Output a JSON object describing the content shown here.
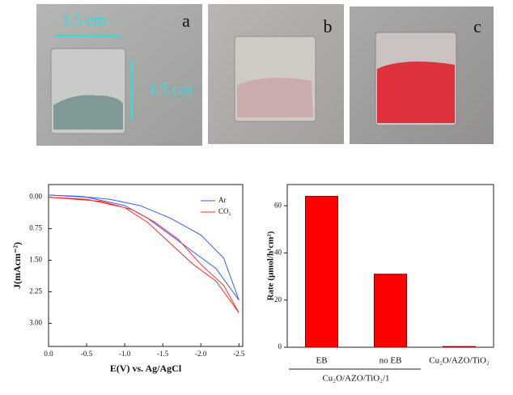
{
  "photos": {
    "labels": [
      "a",
      "b",
      "c"
    ],
    "scale_labels": [
      "1.5 cm",
      "1.5 cm"
    ]
  },
  "chart_data": [
    {
      "type": "line",
      "xlabel": "E(V) vs. Ag/AgCl",
      "ylabel": "J(mAcm⁻²)",
      "xlim": [
        0,
        -2.55
      ],
      "ylim": [
        -0.3,
        3.55
      ],
      "xticks": [
        {
          "value": 0,
          "label": "0.0"
        },
        {
          "value": -0.5,
          "label": "-0.5"
        },
        {
          "value": -1,
          "label": "-1.0"
        },
        {
          "value": -1.5,
          "label": "-1.5"
        },
        {
          "value": -2,
          "label": "-2.0"
        },
        {
          "value": -2.5,
          "label": "-2.5"
        }
      ],
      "yticks": [
        {
          "value": 0,
          "label": "0.00"
        },
        {
          "value": 0.75,
          "label": "0.75"
        },
        {
          "value": 1.5,
          "label": "1.50"
        },
        {
          "value": 2.25,
          "label": "2.25"
        },
        {
          "value": 3,
          "label": "3.00"
        }
      ],
      "legend": "upper right",
      "series": [
        {
          "name": "Ar",
          "color": "#3a5bff",
          "x": [
            0,
            -0.5,
            -1.0,
            -1.3,
            -1.6,
            -1.9,
            -2.2,
            -2.5,
            -2.3,
            -2.0,
            -1.6,
            -1.2,
            -0.8,
            -0.4,
            0
          ],
          "values": [
            -0.05,
            0.0,
            0.2,
            0.5,
            0.9,
            1.3,
            1.7,
            2.45,
            1.45,
            0.9,
            0.5,
            0.2,
            0.05,
            -0.02,
            -0.05
          ]
        },
        {
          "name": "CO₂",
          "color": "#ff2a2a",
          "x": [
            0,
            -0.5,
            -1.0,
            -1.3,
            -1.6,
            -1.9,
            -2.2,
            -2.5,
            -2.3,
            -2.0,
            -1.7,
            -1.4,
            -1.1,
            -0.7,
            0
          ],
          "values": [
            0.0,
            0.05,
            0.25,
            0.6,
            1.1,
            1.6,
            2.0,
            2.75,
            2.1,
            1.6,
            1.0,
            0.6,
            0.3,
            0.1,
            0.0
          ]
        }
      ]
    },
    {
      "type": "bar",
      "ylabel": "Rate (μmol/h¹cm²)",
      "categories": [
        "EB",
        "no EB",
        "Cu₂O/AZO/TiO₂"
      ],
      "group_label": "Cu₂O/AZO/TiO₂/1",
      "values": [
        64,
        31,
        0.3
      ],
      "color": "#ff0000",
      "ylim": [
        0,
        69
      ],
      "yticks": [
        0,
        20,
        40,
        60
      ]
    }
  ]
}
